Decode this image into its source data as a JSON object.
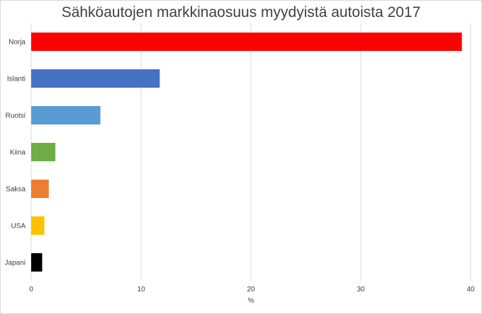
{
  "chart_data": {
    "type": "bar",
    "orientation": "horizontal",
    "title": "Sähköautojen markkinaosuus myydyistä autoista 2017",
    "xlabel": "%",
    "ylabel": "",
    "xlim": [
      0,
      40
    ],
    "xticks": [
      0,
      10,
      20,
      30,
      40
    ],
    "grid": true,
    "legend": "none",
    "categories": [
      "Norja",
      "Islanti",
      "Ruotsi",
      "Kiina",
      "Saksa",
      "USA",
      "Japani"
    ],
    "values": [
      39.2,
      11.7,
      6.3,
      2.2,
      1.6,
      1.2,
      1.0
    ],
    "colors": [
      "#ff0000",
      "#4472c4",
      "#5b9bd5",
      "#70ad47",
      "#ed7d31",
      "#ffc000",
      "#000000"
    ]
  }
}
